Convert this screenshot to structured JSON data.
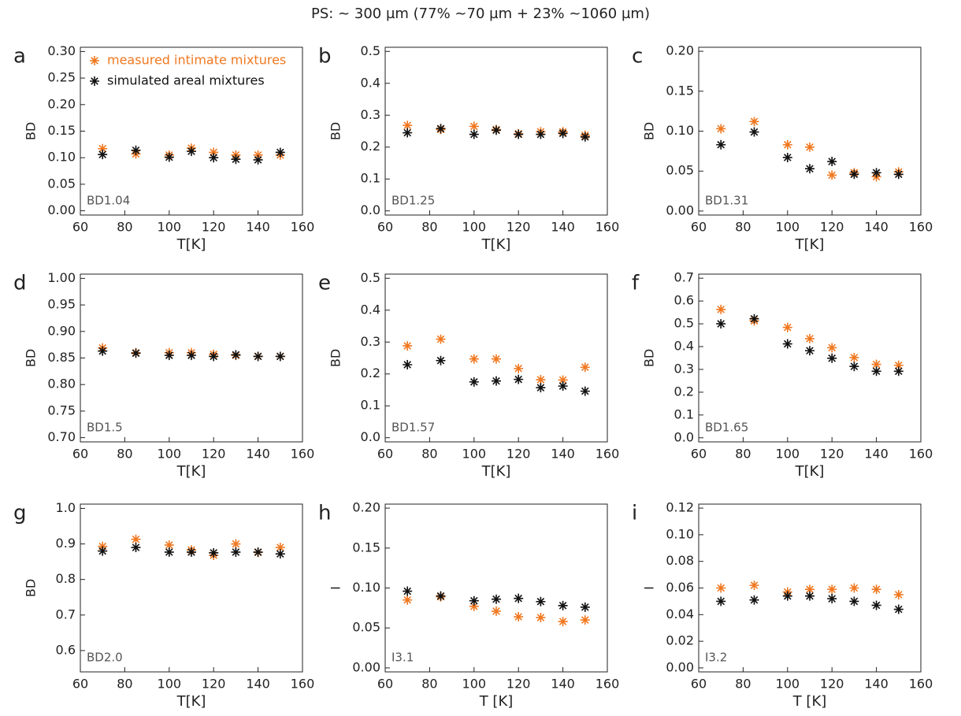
{
  "title": "PS: ~ 300 µm    (77% ~70 µm + 23% ~1060 µm)",
  "chart_data": [
    {
      "type": "scatter",
      "panel": "a",
      "annotation": "BD1.04",
      "xlabel": "T[K]",
      "ylabel": "BD",
      "legend": "upper left",
      "x": [
        70,
        85,
        100,
        110,
        120,
        130,
        140,
        150
      ],
      "xlim": [
        60,
        160
      ],
      "xticks": [
        60,
        80,
        100,
        120,
        140,
        160
      ],
      "ylim": [
        -0.008,
        0.308
      ],
      "yticks": [
        {
          "value": 0,
          "label": "0.00"
        },
        0.05,
        {
          "value": 0.1,
          "label": "0.10"
        },
        0.15,
        {
          "value": 0.2,
          "label": "0.20"
        },
        0.25,
        {
          "value": 0.3,
          "label": "0.30"
        }
      ],
      "series": [
        {
          "name": "measured intimate mixtures",
          "color": "#f07820",
          "values": [
            0.117,
            0.107,
            0.105,
            0.118,
            0.11,
            0.105,
            0.105,
            0.105
          ]
        },
        {
          "name": "simulated areal mixtures",
          "color": "#111111",
          "values": [
            0.106,
            0.114,
            0.101,
            0.112,
            0.1,
            0.097,
            0.096,
            0.11
          ]
        }
      ]
    },
    {
      "type": "scatter",
      "panel": "b",
      "annotation": "BD1.25",
      "xlabel": "T[K]",
      "ylabel": "BD",
      "x": [
        70,
        85,
        100,
        110,
        120,
        130,
        140,
        150
      ],
      "xlim": [
        60,
        160
      ],
      "xticks": [
        60,
        80,
        100,
        120,
        140,
        160
      ],
      "ylim": [
        -0.013,
        0.513
      ],
      "yticks": [
        {
          "value": 0,
          "label": "0.0"
        },
        0.1,
        0.2,
        0.3,
        0.4,
        0.5
      ],
      "series": [
        {
          "color": "#f07820",
          "values": [
            0.268,
            0.255,
            0.265,
            0.255,
            0.242,
            0.248,
            0.248,
            0.237
          ]
        },
        {
          "color": "#111111",
          "values": [
            0.245,
            0.258,
            0.24,
            0.253,
            0.24,
            0.24,
            0.243,
            0.232
          ]
        }
      ]
    },
    {
      "type": "scatter",
      "panel": "c",
      "annotation": "BD1.31",
      "xlabel": "T[K]",
      "ylabel": "BD",
      "x": [
        70,
        85,
        100,
        110,
        120,
        130,
        140,
        150
      ],
      "xlim": [
        60,
        160
      ],
      "xticks": [
        60,
        80,
        100,
        120,
        140,
        160
      ],
      "ylim": [
        -0.005,
        0.205
      ],
      "yticks": [
        {
          "value": 0,
          "label": "0.00"
        },
        0.05,
        {
          "value": 0.1,
          "label": "0.10"
        },
        0.15,
        {
          "value": 0.2,
          "label": "0.20"
        }
      ],
      "series": [
        {
          "color": "#f07820",
          "values": [
            0.103,
            0.112,
            0.083,
            0.08,
            0.045,
            0.048,
            0.043,
            0.049
          ]
        },
        {
          "color": "#111111",
          "values": [
            0.083,
            0.099,
            0.067,
            0.053,
            0.062,
            0.046,
            0.048,
            0.046
          ]
        }
      ]
    },
    {
      "type": "scatter",
      "panel": "d",
      "annotation": "BD1.5",
      "xlabel": "T[K]",
      "ylabel": "BD",
      "x": [
        70,
        85,
        100,
        110,
        120,
        130,
        140,
        150
      ],
      "xlim": [
        60,
        160
      ],
      "xticks": [
        60,
        80,
        100,
        120,
        140,
        160
      ],
      "ylim": [
        0.692,
        1.008
      ],
      "yticks": [
        {
          "value": 0.7,
          "label": "0.70"
        },
        0.75,
        {
          "value": 0.8,
          "label": "0.80"
        },
        0.85,
        {
          "value": 0.9,
          "label": "0.90"
        },
        0.95,
        {
          "value": 1,
          "label": "1.00"
        }
      ],
      "series": [
        {
          "color": "#f07820",
          "values": [
            0.869,
            0.86,
            0.86,
            0.86,
            0.857,
            0.855,
            0.853,
            0.853
          ]
        },
        {
          "color": "#111111",
          "values": [
            0.863,
            0.859,
            0.855,
            0.855,
            0.853,
            0.856,
            0.853,
            0.853
          ]
        }
      ]
    },
    {
      "type": "scatter",
      "panel": "e",
      "annotation": "BD1.57",
      "xlabel": "T[K]",
      "ylabel": "BD",
      "x": [
        70,
        85,
        100,
        110,
        120,
        130,
        140,
        150
      ],
      "xlim": [
        60,
        160
      ],
      "xticks": [
        60,
        80,
        100,
        120,
        140,
        160
      ],
      "ylim": [
        -0.013,
        0.513
      ],
      "yticks": [
        {
          "value": 0,
          "label": "0.0"
        },
        0.1,
        0.2,
        0.3,
        0.4,
        0.5
      ],
      "series": [
        {
          "color": "#f07820",
          "values": [
            0.288,
            0.309,
            0.247,
            0.247,
            0.217,
            0.182,
            0.181,
            0.221
          ]
        },
        {
          "color": "#111111",
          "values": [
            0.229,
            0.242,
            0.175,
            0.178,
            0.183,
            0.157,
            0.162,
            0.146
          ]
        }
      ]
    },
    {
      "type": "scatter",
      "panel": "f",
      "annotation": "BD1.65",
      "xlabel": "T[K]",
      "ylabel": "BD",
      "x": [
        70,
        85,
        100,
        110,
        120,
        130,
        140,
        150
      ],
      "xlim": [
        60,
        160
      ],
      "xticks": [
        60,
        80,
        100,
        120,
        140,
        160
      ],
      "ylim": [
        -0.018,
        0.718
      ],
      "yticks": [
        {
          "value": 0,
          "label": "0.0"
        },
        0.1,
        0.2,
        0.3,
        0.4,
        0.5,
        0.6,
        0.7
      ],
      "series": [
        {
          "color": "#f07820",
          "values": [
            0.563,
            0.513,
            0.484,
            0.435,
            0.395,
            0.352,
            0.322,
            0.318
          ]
        },
        {
          "color": "#111111",
          "values": [
            0.5,
            0.522,
            0.412,
            0.382,
            0.349,
            0.313,
            0.292,
            0.292
          ]
        }
      ]
    },
    {
      "type": "scatter",
      "panel": "g",
      "annotation": "BD2.0",
      "xlabel": "T[K]",
      "ylabel": "BD",
      "x": [
        70,
        85,
        100,
        110,
        120,
        130,
        140,
        150
      ],
      "xlim": [
        60,
        160
      ],
      "xticks": [
        60,
        80,
        100,
        120,
        140,
        160
      ],
      "ylim": [
        0.54,
        1.012
      ],
      "yticks": [
        0.6,
        0.7,
        0.8,
        0.9,
        {
          "value": 1,
          "label": "1.0"
        }
      ],
      "series": [
        {
          "color": "#f07820",
          "values": [
            0.893,
            0.913,
            0.897,
            0.883,
            0.868,
            0.9,
            0.876,
            0.89
          ]
        },
        {
          "color": "#111111",
          "values": [
            0.88,
            0.89,
            0.877,
            0.877,
            0.875,
            0.877,
            0.877,
            0.872
          ]
        }
      ]
    },
    {
      "type": "scatter",
      "panel": "h",
      "annotation": "I3.1",
      "xlabel": "T [K]",
      "ylabel": "I",
      "x": [
        70,
        85,
        100,
        110,
        120,
        130,
        140,
        150
      ],
      "xlim": [
        60,
        160
      ],
      "xticks": [
        60,
        80,
        100,
        120,
        140,
        160
      ],
      "ylim": [
        -0.005,
        0.205
      ],
      "yticks": [
        {
          "value": 0,
          "label": "0.00"
        },
        0.05,
        {
          "value": 0.1,
          "label": "0.10"
        },
        0.15,
        {
          "value": 0.2,
          "label": "0.20"
        }
      ],
      "series": [
        {
          "color": "#f07820",
          "values": [
            0.085,
            0.089,
            0.077,
            0.071,
            0.064,
            0.063,
            0.058,
            0.06
          ]
        },
        {
          "color": "#111111",
          "values": [
            0.096,
            0.09,
            0.084,
            0.086,
            0.087,
            0.083,
            0.078,
            0.076
          ]
        }
      ]
    },
    {
      "type": "scatter",
      "panel": "i",
      "annotation": "I3.2",
      "xlabel": "T [K]",
      "ylabel": "I",
      "x": [
        70,
        85,
        100,
        110,
        120,
        130,
        140,
        150
      ],
      "xlim": [
        60,
        160
      ],
      "xticks": [
        60,
        80,
        100,
        120,
        140,
        160
      ],
      "ylim": [
        -0.003,
        0.123
      ],
      "yticks": [
        {
          "value": 0,
          "label": "0.00"
        },
        0.02,
        0.04,
        0.06,
        0.08,
        {
          "value": 0.1,
          "label": "0.10"
        },
        {
          "value": 0.12,
          "label": "0.12"
        }
      ],
      "series": [
        {
          "color": "#f07820",
          "values": [
            0.06,
            0.062,
            0.057,
            0.059,
            0.059,
            0.06,
            0.059,
            0.055
          ]
        },
        {
          "color": "#111111",
          "values": [
            0.05,
            0.051,
            0.054,
            0.054,
            0.052,
            0.05,
            0.047,
            0.044
          ]
        }
      ]
    }
  ]
}
